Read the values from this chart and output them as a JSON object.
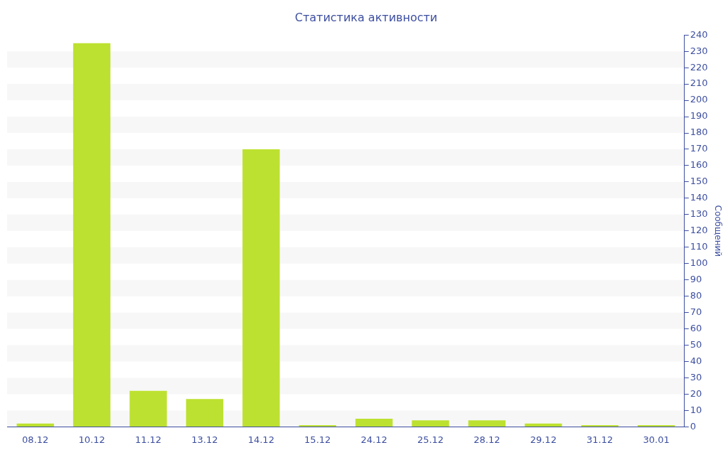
{
  "chart_data": {
    "type": "bar",
    "title": "Статистика активности",
    "ylabel": "Сообщений",
    "categories": [
      "08.12",
      "10.12",
      "11.12",
      "13.12",
      "14.12",
      "15.12",
      "24.12",
      "25.12",
      "28.12",
      "29.12",
      "31.12",
      "30.01"
    ],
    "values": [
      2,
      235,
      22,
      17,
      170,
      1,
      5,
      4,
      4,
      2,
      1,
      1
    ],
    "color": "#bde130",
    "ylim": [
      0,
      240
    ],
    "yticks": [
      0,
      10,
      20,
      30,
      40,
      50,
      60,
      70,
      80,
      90,
      100,
      110,
      120,
      130,
      140,
      150,
      160,
      170,
      180,
      190,
      200,
      210,
      220,
      230,
      240
    ],
    "legend": false
  }
}
